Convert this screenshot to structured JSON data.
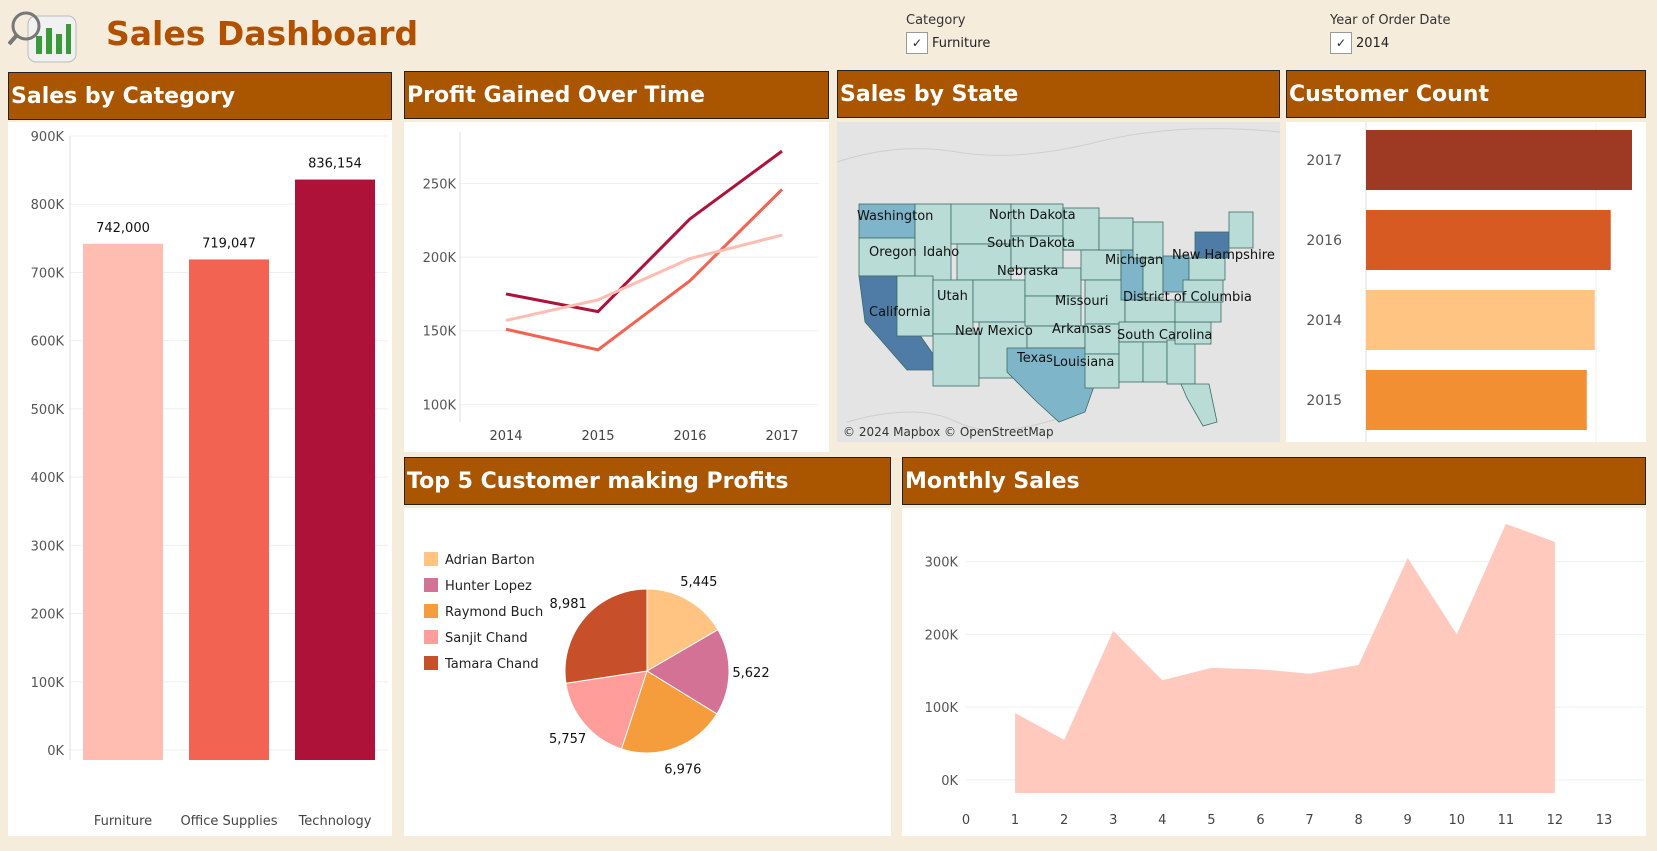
{
  "dashboard": {
    "title": "Sales Dashboard"
  },
  "filters": {
    "category": {
      "label": "Category",
      "value": "Furniture"
    },
    "year": {
      "label": "Year of Order Date",
      "value": "2014"
    }
  },
  "panels": {
    "sales_by_category": "Sales by Category",
    "profit_over_time": "Profit Gained Over Time",
    "sales_by_state": "Sales by State",
    "customer_count": "Customer Count",
    "top5": "Top 5 Customer making Profits",
    "monthly_sales": "Monthly Sales"
  },
  "map": {
    "attribution": "© 2024 Mapbox © OpenStreetMap",
    "labels": [
      "Washington",
      "North Dakota",
      "Oregon",
      "Idaho",
      "South Dakota",
      "Michigan",
      "New Hampshire",
      "Nebraska",
      "Utah",
      "Missouri",
      "District of Columbia",
      "California",
      "Arkansas",
      "New Mexico",
      "South Carolina",
      "Texas",
      "Louisiana"
    ],
    "colors": {
      "light": "#b9ddd6",
      "mid": "#7fb5c9",
      "dark": "#4e7ca6"
    }
  },
  "chart_data": [
    {
      "id": "sales_by_category",
      "type": "bar",
      "categories": [
        "Furniture",
        "Office Supplies",
        "Technology"
      ],
      "values": [
        742000,
        719047,
        836154
      ],
      "value_labels": [
        "742,000",
        "719,047",
        "836,154"
      ],
      "colors": [
        "#ffbcb0",
        "#f26352",
        "#ae1239"
      ],
      "ylim": [
        0,
        900000
      ],
      "yticks": [
        "0K",
        "100K",
        "200K",
        "300K",
        "400K",
        "500K",
        "600K",
        "700K",
        "800K",
        "900K"
      ]
    },
    {
      "id": "profit_over_time",
      "type": "line",
      "x": [
        "2014",
        "2015",
        "2016",
        "2017"
      ],
      "ylim": [
        88000,
        285000
      ],
      "yticks": [
        {
          "v": 100000,
          "label": "100K"
        },
        {
          "v": 150000,
          "label": "150K"
        },
        {
          "v": 200000,
          "label": "200K"
        },
        {
          "v": 250000,
          "label": "250K"
        }
      ],
      "series": [
        {
          "color": "#ae1239",
          "values": [
            175000,
            163000,
            226000,
            272000
          ]
        },
        {
          "color": "#f26352",
          "values": [
            151000,
            137000,
            184000,
            246000
          ]
        },
        {
          "color": "#ffbcb0",
          "values": [
            157000,
            171000,
            199000,
            215000
          ]
        }
      ]
    },
    {
      "id": "customer_count",
      "type": "bar",
      "orientation": "horizontal",
      "categories": [
        "2017",
        "2016",
        "2014",
        "2015"
      ],
      "values": [
        100,
        92,
        86,
        83
      ],
      "colors": [
        "#9e3a24",
        "#d65a22",
        "#ffc482",
        "#f28f33"
      ]
    },
    {
      "id": "top5",
      "type": "pie",
      "labels": [
        "Adrian Barton",
        "Hunter Lopez",
        "Raymond Buch",
        "Sanjit Chand",
        "Tamara Chand"
      ],
      "values": [
        5445,
        5622,
        6976,
        5757,
        8981
      ],
      "value_labels": [
        "5,445",
        "5,622",
        "6,976",
        "5,757",
        "8,981"
      ],
      "colors": [
        "#ffc482",
        "#d37295",
        "#f59c3c",
        "#ff9d9a",
        "#c7502a"
      ]
    },
    {
      "id": "monthly_sales",
      "type": "area",
      "x": [
        1,
        2,
        3,
        4,
        5,
        6,
        7,
        8,
        9,
        10,
        11,
        12
      ],
      "values": [
        92000,
        55000,
        205000,
        137000,
        154000,
        152000,
        146000,
        158000,
        305000,
        200000,
        352000,
        327000
      ],
      "color": "#ffc9be",
      "xlim": [
        0,
        13
      ],
      "xticks": [
        "0",
        "1",
        "2",
        "3",
        "4",
        "5",
        "6",
        "7",
        "8",
        "9",
        "10",
        "11",
        "12",
        "13"
      ],
      "ylim": [
        -18000,
        360000
      ],
      "yticks": [
        {
          "v": 0,
          "label": "0K"
        },
        {
          "v": 100000,
          "label": "100K"
        },
        {
          "v": 200000,
          "label": "200K"
        },
        {
          "v": 300000,
          "label": "300K"
        }
      ]
    }
  ]
}
